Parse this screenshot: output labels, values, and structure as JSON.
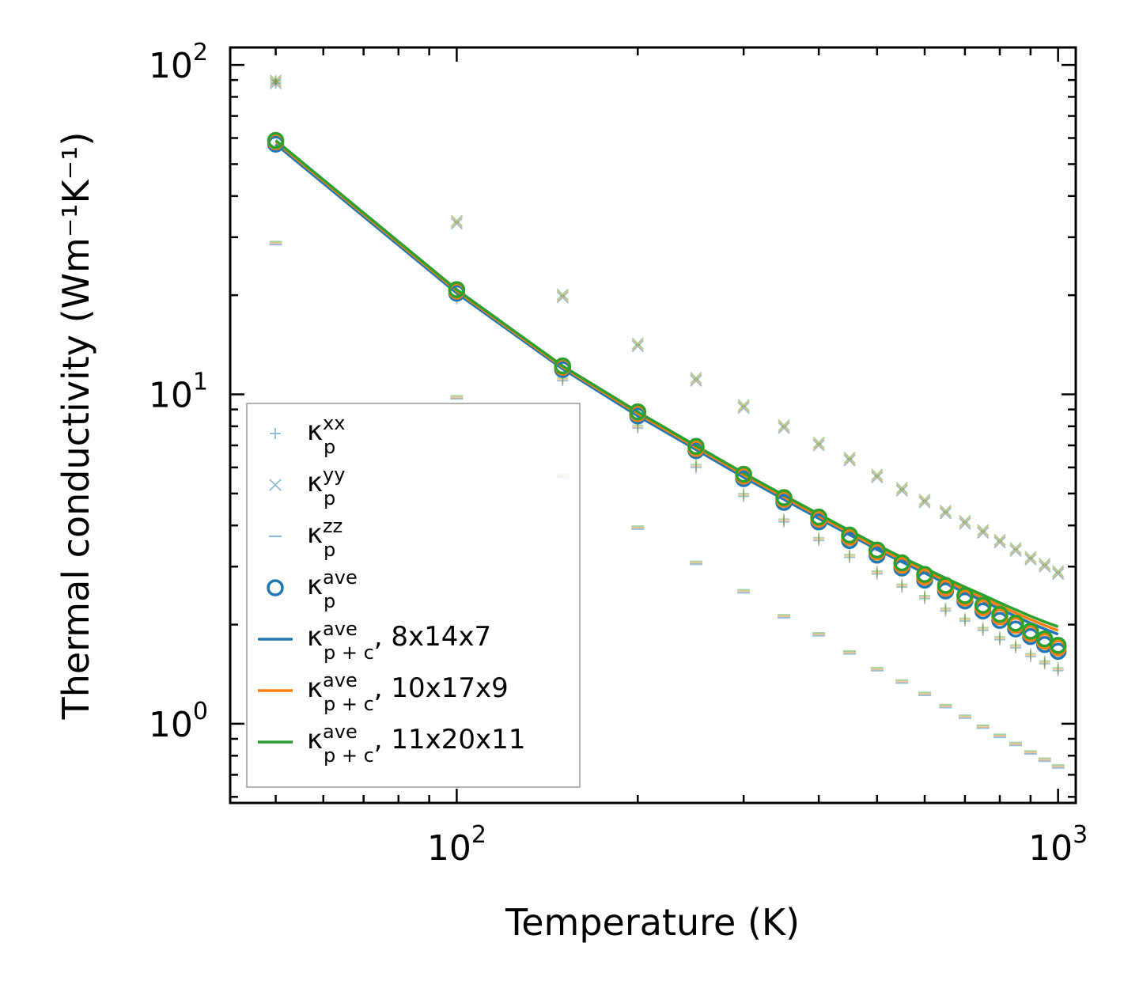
{
  "chart_data": {
    "type": "scatter",
    "title": "",
    "xlabel": "Temperature (K)",
    "ylabel": "Thermal conductivity (Wm⁻¹K⁻¹)",
    "xscale": "log",
    "yscale": "log",
    "xlim": [
      42,
      1070
    ],
    "ylim": [
      0.575,
      113
    ],
    "x_ticks": [
      {
        "base": "10",
        "exp": "2",
        "value": 100
      },
      {
        "base": "10",
        "exp": "3",
        "value": 1000
      }
    ],
    "y_ticks": [
      {
        "base": "10",
        "exp": "0",
        "value": 1
      },
      {
        "base": "10",
        "exp": "1",
        "value": 10
      },
      {
        "base": "10",
        "exp": "2",
        "value": 100
      }
    ],
    "legend_position": "lower-left",
    "x": [
      50,
      100,
      150,
      200,
      250,
      300,
      350,
      400,
      450,
      500,
      550,
      600,
      650,
      700,
      750,
      800,
      850,
      900,
      950,
      1000
    ],
    "series": [
      {
        "name": "kappa_p_xx",
        "label_base": "κ",
        "label_sub": "p",
        "label_sup": "xx",
        "label_suffix": "",
        "marker": "plus",
        "color": "#1f77b4",
        "values": [
          88,
          19.5,
          11,
          7.9,
          6.0,
          4.9,
          4.1,
          3.6,
          3.2,
          2.85,
          2.6,
          2.4,
          2.2,
          2.05,
          1.92,
          1.8,
          1.7,
          1.6,
          1.52,
          1.45
        ]
      },
      {
        "name": "kappa_p_yy",
        "label_base": "κ",
        "label_sub": "p",
        "label_sup": "yy",
        "label_suffix": "",
        "marker": "x",
        "color": "#1f77b4",
        "values": [
          88,
          33,
          19.7,
          14,
          11,
          9.1,
          7.9,
          7.0,
          6.3,
          5.6,
          5.1,
          4.7,
          4.35,
          4.05,
          3.8,
          3.55,
          3.35,
          3.15,
          3.0,
          2.85
        ]
      },
      {
        "name": "kappa_p_zz",
        "label_base": "κ",
        "label_sub": "p",
        "label_sup": "zz",
        "label_suffix": "",
        "marker": "dash",
        "color": "#1f77b4",
        "values": [
          28.5,
          9.7,
          5.6,
          3.9,
          3.05,
          2.5,
          2.1,
          1.85,
          1.63,
          1.45,
          1.33,
          1.22,
          1.12,
          1.04,
          0.97,
          0.91,
          0.86,
          0.81,
          0.77,
          0.735
        ]
      },
      {
        "name": "kappa_p_ave",
        "label_base": "κ",
        "label_sub": "p",
        "label_sup": "ave",
        "label_suffix": "",
        "marker": "circle",
        "color": "#1f77b4",
        "values": [
          57.5,
          20.3,
          11.9,
          8.6,
          6.75,
          5.55,
          4.7,
          4.1,
          3.6,
          3.25,
          2.97,
          2.73,
          2.53,
          2.36,
          2.2,
          2.06,
          1.94,
          1.84,
          1.74,
          1.66
        ]
      },
      {
        "name": "kappa_p_ave_10x17x9",
        "marker": "circle",
        "color": "#ff7f0e",
        "legend": false,
        "values": [
          58.5,
          20.6,
          12.1,
          8.75,
          6.85,
          5.65,
          4.8,
          4.18,
          3.68,
          3.32,
          3.03,
          2.79,
          2.58,
          2.41,
          2.25,
          2.11,
          1.99,
          1.88,
          1.78,
          1.7
        ]
      },
      {
        "name": "kappa_p_ave_11x20x11",
        "marker": "circle",
        "color": "#2ca02c",
        "legend": false,
        "values": [
          59,
          20.8,
          12.2,
          8.85,
          6.95,
          5.72,
          4.86,
          4.24,
          3.74,
          3.37,
          3.08,
          2.84,
          2.63,
          2.45,
          2.29,
          2.15,
          2.02,
          1.91,
          1.81,
          1.73
        ]
      },
      {
        "name": "kappa_pc_ave_8x14x7",
        "label_base": "κ",
        "label_sub": "p + c",
        "label_sup": "ave",
        "label_suffix": ", 8x14x7",
        "marker": "line",
        "color": "#1f77b4",
        "values": [
          57.5,
          20.3,
          11.95,
          8.6,
          6.8,
          5.6,
          4.8,
          4.2,
          3.75,
          3.38,
          3.1,
          2.87,
          2.67,
          2.5,
          2.36,
          2.23,
          2.12,
          2.02,
          1.94,
          1.87
        ]
      },
      {
        "name": "kappa_pc_ave_10x17x9",
        "label_base": "κ",
        "label_sub": "p + c",
        "label_sup": "ave",
        "label_suffix": ", 10x17x9",
        "marker": "line",
        "color": "#ff7f0e",
        "values": [
          58.5,
          20.6,
          12.1,
          8.75,
          6.9,
          5.7,
          4.88,
          4.27,
          3.8,
          3.43,
          3.15,
          2.92,
          2.72,
          2.55,
          2.41,
          2.28,
          2.17,
          2.07,
          1.99,
          1.92
        ]
      },
      {
        "name": "kappa_pc_ave_11x20x11",
        "label_base": "κ",
        "label_sub": "p + c",
        "label_sup": "ave",
        "label_suffix": ", 11x20x11",
        "marker": "line",
        "color": "#2ca02c",
        "values": [
          59,
          20.8,
          12.2,
          8.85,
          6.98,
          5.77,
          4.94,
          4.33,
          3.86,
          3.49,
          3.2,
          2.97,
          2.77,
          2.6,
          2.46,
          2.33,
          2.22,
          2.12,
          2.04,
          1.97
        ]
      }
    ]
  }
}
